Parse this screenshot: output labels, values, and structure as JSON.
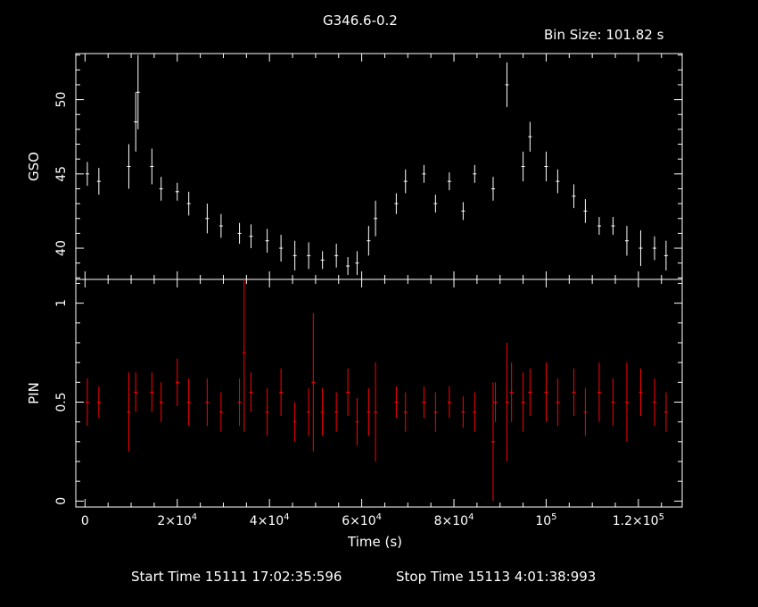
{
  "title": "G346.6-0.2",
  "bin_size_label": "Bin Size: 101.82 s",
  "start_time_label": "Start Time 15111 17:02:35:596",
  "stop_time_label": "Stop Time 15113  4:01:38:993",
  "colors": {
    "background": "#000000",
    "axes": "#ffffff",
    "gso": "#ffffff",
    "pin": "#ff0000"
  },
  "chart_data": [
    {
      "type": "scatter",
      "panel": "top",
      "ylabel": "GSO",
      "xlim": [
        -2000,
        129500
      ],
      "ylim": [
        37.9,
        53.1
      ],
      "yticks": [
        "40",
        "45",
        "50"
      ],
      "grid": false,
      "series": [
        {
          "x": [
            500,
            3000,
            9500,
            11000,
            11500,
            14500,
            16500,
            20000,
            22500,
            26500,
            29500,
            33500,
            36000,
            39500,
            42500,
            45500,
            48500,
            51500,
            54500,
            57000,
            59000,
            61500,
            63000,
            67500,
            69500,
            73500,
            76000,
            79000,
            82000,
            84500,
            88500,
            91500,
            95000,
            96500,
            100000,
            102500,
            106000,
            108500,
            111500,
            114500,
            117500,
            120500,
            123500,
            126000
          ],
          "y": [
            45.0,
            44.5,
            45.5,
            48.5,
            50.5,
            45.5,
            44.0,
            43.8,
            43.0,
            42.0,
            41.5,
            41.0,
            40.8,
            40.5,
            40.0,
            39.5,
            39.5,
            39.2,
            39.5,
            38.8,
            39.0,
            40.5,
            42.0,
            43.0,
            44.5,
            45.0,
            43.0,
            44.5,
            42.5,
            45.0,
            44.0,
            51.0,
            45.5,
            47.5,
            45.5,
            44.5,
            43.5,
            42.5,
            41.5,
            41.5,
            40.5,
            40.0,
            40.0,
            39.5
          ],
          "yerr": [
            0.8,
            0.9,
            1.5,
            2.0,
            2.5,
            1.2,
            0.8,
            0.6,
            0.8,
            1.0,
            0.8,
            0.7,
            0.8,
            0.8,
            0.9,
            1.0,
            0.9,
            0.6,
            0.8,
            0.6,
            0.8,
            1.0,
            1.2,
            0.7,
            0.8,
            0.6,
            0.6,
            0.6,
            0.6,
            0.6,
            0.8,
            1.5,
            1.0,
            1.0,
            1.0,
            0.8,
            0.8,
            0.8,
            0.6,
            0.6,
            1.0,
            1.2,
            0.8,
            1.0
          ]
        }
      ]
    },
    {
      "type": "scatter",
      "panel": "bottom",
      "ylabel": "PIN",
      "xlabel": "Time (s)",
      "xlim": [
        -2000,
        129500
      ],
      "ylim": [
        -0.03,
        1.12
      ],
      "yticks": [
        "0",
        "0.5",
        "1"
      ],
      "xticks": [
        "0",
        "2×10^4",
        "4×10^4",
        "6×10^4",
        "8×10^4",
        "10^5",
        "1.2×10^5"
      ],
      "xtick_values": [
        0,
        20000,
        40000,
        60000,
        80000,
        100000,
        120000
      ],
      "grid": false,
      "series": [
        {
          "x": [
            500,
            3000,
            9500,
            11000,
            14500,
            16500,
            20000,
            22500,
            26500,
            29500,
            33500,
            34500,
            36000,
            39500,
            42500,
            45500,
            48500,
            49500,
            51500,
            54500,
            57000,
            59000,
            61500,
            63000,
            67500,
            69500,
            73500,
            76000,
            79000,
            82000,
            84500,
            88500,
            89000,
            91500,
            92500,
            95000,
            96500,
            100000,
            102500,
            106000,
            108500,
            111500,
            114500,
            117500,
            120500,
            123500,
            126000
          ],
          "y": [
            0.5,
            0.5,
            0.45,
            0.55,
            0.55,
            0.5,
            0.6,
            0.5,
            0.5,
            0.45,
            0.5,
            0.75,
            0.55,
            0.45,
            0.55,
            0.4,
            0.45,
            0.6,
            0.45,
            0.45,
            0.55,
            0.4,
            0.45,
            0.45,
            0.5,
            0.45,
            0.5,
            0.45,
            0.5,
            0.45,
            0.45,
            0.3,
            0.5,
            0.5,
            0.55,
            0.5,
            0.55,
            0.55,
            0.5,
            0.55,
            0.45,
            0.55,
            0.5,
            0.5,
            0.55,
            0.5,
            0.45
          ],
          "yerr": [
            0.12,
            0.08,
            0.2,
            0.1,
            0.1,
            0.1,
            0.12,
            0.12,
            0.12,
            0.1,
            0.12,
            0.4,
            0.1,
            0.12,
            0.12,
            0.1,
            0.12,
            0.35,
            0.12,
            0.1,
            0.12,
            0.12,
            0.12,
            0.25,
            0.08,
            0.1,
            0.08,
            0.1,
            0.08,
            0.08,
            0.1,
            0.3,
            0.1,
            0.3,
            0.15,
            0.15,
            0.12,
            0.15,
            0.12,
            0.12,
            0.12,
            0.15,
            0.12,
            0.2,
            0.12,
            0.12,
            0.1
          ]
        }
      ]
    }
  ]
}
